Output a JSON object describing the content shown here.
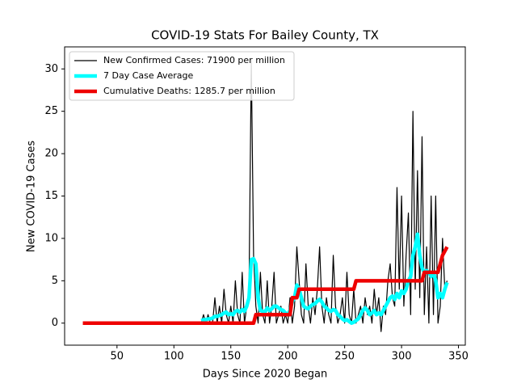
{
  "chart_data": {
    "type": "line",
    "title": "COVID-19 Stats For Bailey County, TX",
    "x_label": "Days Since 2020 Began",
    "y_label": "New COVID-19 Cases",
    "x": [
      20,
      40,
      60,
      80,
      100,
      120,
      124,
      126,
      128,
      130,
      132,
      134,
      136,
      138,
      140,
      142,
      144,
      146,
      148,
      150,
      152,
      154,
      156,
      158,
      160,
      162,
      164,
      166,
      168,
      170,
      172,
      174,
      176,
      178,
      180,
      182,
      184,
      186,
      188,
      190,
      192,
      194,
      196,
      198,
      200,
      202,
      204,
      206,
      208,
      210,
      212,
      214,
      216,
      218,
      220,
      222,
      224,
      226,
      228,
      230,
      232,
      234,
      236,
      238,
      240,
      242,
      244,
      246,
      248,
      250,
      252,
      254,
      256,
      258,
      260,
      262,
      264,
      266,
      268,
      270,
      272,
      274,
      276,
      278,
      280,
      282,
      284,
      286,
      288,
      290,
      292,
      294,
      296,
      298,
      300,
      302,
      304,
      306,
      308,
      310,
      312,
      314,
      316,
      318,
      320,
      322,
      324,
      326,
      328,
      330,
      332,
      334,
      336,
      338,
      340
    ],
    "series": [
      {
        "name": "New Confirmed Cases: 71900 per million",
        "color": "#000000",
        "width": 1.2,
        "values": [
          null,
          null,
          null,
          null,
          null,
          null,
          0,
          1,
          0,
          1,
          0,
          0,
          3,
          0,
          2,
          0,
          4,
          1,
          0,
          2,
          0,
          5,
          1,
          0,
          6,
          0,
          2,
          4,
          31,
          8,
          2,
          0,
          6,
          1,
          0,
          5,
          0,
          2,
          6,
          0,
          1,
          2,
          0,
          1,
          0,
          3,
          0,
          2,
          9,
          5,
          1,
          0,
          7,
          2,
          0,
          3,
          1,
          4,
          9,
          2,
          0,
          3,
          1,
          0,
          8,
          2,
          0,
          1,
          3,
          0,
          6,
          1,
          0,
          4,
          0,
          1,
          2,
          0,
          3,
          1,
          2,
          0,
          4,
          1,
          3,
          -1,
          2,
          1,
          5,
          7,
          3,
          2,
          16,
          4,
          15,
          2,
          8,
          13,
          1,
          25,
          4,
          18,
          3,
          22,
          1,
          9,
          0,
          15,
          1,
          15,
          0,
          2,
          10,
          4,
          5
        ]
      },
      {
        "name": "7 Day Case Average",
        "color": "#00ffff",
        "width": 4.5,
        "values": [
          null,
          null,
          null,
          null,
          null,
          null,
          0.3,
          0.4,
          0.4,
          0.5,
          0.5,
          0.6,
          0.8,
          0.8,
          0.9,
          1,
          1.2,
          1.3,
          1,
          1.1,
          1,
          1.4,
          1.5,
          1.3,
          1.6,
          1.4,
          2,
          3,
          7.5,
          7.6,
          7,
          3,
          1.5,
          1.4,
          1.3,
          1.8,
          1.5,
          1.7,
          2,
          2,
          1.8,
          1.6,
          1.5,
          1.2,
          1,
          1.5,
          2.5,
          3,
          4.5,
          4,
          3,
          2,
          1.8,
          1.7,
          2,
          2.2,
          2.3,
          2.6,
          2.8,
          2.5,
          2,
          1.8,
          1.5,
          1.4,
          1.6,
          1.5,
          1,
          0.8,
          0.5,
          0.3,
          0.4,
          0.2,
          0,
          0.1,
          0.3,
          0.5,
          1,
          1.5,
          1.8,
          1.5,
          1,
          1.2,
          1.5,
          1,
          1.2,
          1,
          1.5,
          2,
          2.5,
          3,
          3.2,
          2.8,
          3.5,
          3,
          3.8,
          3.5,
          4,
          5,
          5.5,
          8,
          9,
          10.5,
          8,
          6.5,
          6,
          6.2,
          6,
          5.5,
          6,
          5,
          3,
          3.5,
          3,
          4,
          4.8
        ]
      },
      {
        "name": "Cumulative Deaths: 1285.7 per million",
        "color": "#ee0000",
        "width": 4.5,
        "values": [
          0,
          0,
          0,
          0,
          0,
          0,
          0,
          0,
          0,
          0,
          0,
          0,
          0,
          0,
          0,
          0,
          0,
          0,
          0,
          0,
          0,
          0,
          0,
          0,
          0,
          0,
          0,
          0,
          0,
          0,
          1,
          1,
          1,
          1,
          1,
          1,
          1,
          1,
          1,
          1,
          1,
          1,
          1,
          1,
          1,
          1,
          3,
          3,
          3,
          4,
          4,
          4,
          4,
          4,
          4,
          4,
          4,
          4,
          4,
          4,
          4,
          4,
          4,
          4,
          4,
          4,
          4,
          4,
          4,
          4,
          4,
          4,
          4,
          4,
          5,
          5,
          5,
          5,
          5,
          5,
          5,
          5,
          5,
          5,
          5,
          5,
          5,
          5,
          5,
          5,
          5,
          5,
          5,
          5,
          5,
          5,
          5,
          5,
          5,
          5,
          5,
          5,
          5,
          5,
          6,
          6,
          6,
          6,
          6,
          6,
          6,
          7,
          8,
          8.5,
          9
        ]
      }
    ],
    "xlim": [
      4,
      356
    ],
    "ylim": [
      -2.6,
      32.6
    ],
    "xticks": [
      50,
      100,
      150,
      200,
      250,
      300,
      350
    ],
    "yticks": [
      0,
      5,
      10,
      15,
      20,
      25,
      30
    ],
    "legend": "upper left",
    "grid": false
  }
}
